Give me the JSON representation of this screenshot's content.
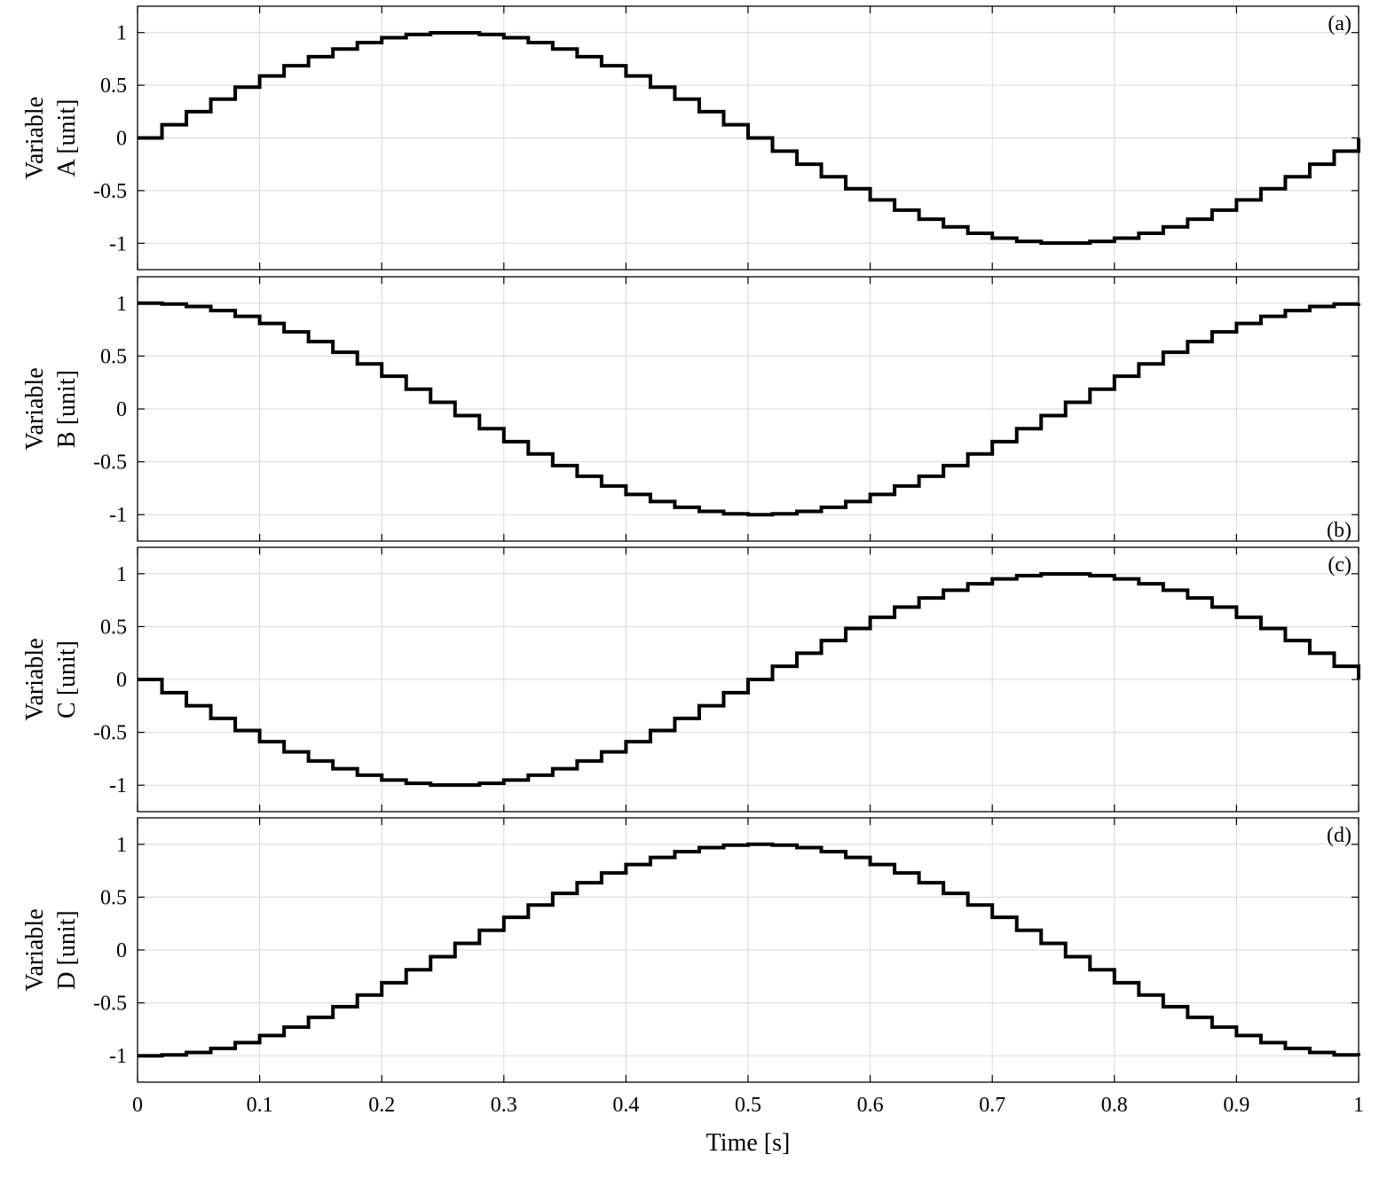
{
  "chart_data": [
    {
      "type": "line",
      "panel_label": "(a)",
      "label_position": "top-right",
      "ylabel": [
        "Variable",
        "A [unit]"
      ],
      "xlim": [
        0,
        1
      ],
      "ylim": [
        -1.25,
        1.25
      ],
      "yticks": [
        -1,
        -0.5,
        0,
        0.5,
        1
      ],
      "ytick_labels": [
        "-1",
        "-0.5",
        "0",
        "0.5",
        "1"
      ],
      "grid": true,
      "step": 0.02,
      "x": [
        0,
        0.02,
        0.04,
        0.06,
        0.08,
        0.1,
        0.12,
        0.14,
        0.16,
        0.18,
        0.2,
        0.22,
        0.24,
        0.26,
        0.28,
        0.3,
        0.32,
        0.34,
        0.36,
        0.38,
        0.4,
        0.42,
        0.44,
        0.46,
        0.48,
        0.5,
        0.52,
        0.54,
        0.56,
        0.58,
        0.6,
        0.62,
        0.64,
        0.66,
        0.68,
        0.7,
        0.72,
        0.74,
        0.76,
        0.78,
        0.8,
        0.82,
        0.84,
        0.86,
        0.88,
        0.9,
        0.92,
        0.94,
        0.96,
        0.98,
        1
      ],
      "values": [
        0,
        0.125,
        0.249,
        0.368,
        0.482,
        0.588,
        0.685,
        0.771,
        0.844,
        0.905,
        0.951,
        0.982,
        0.998,
        0.998,
        0.982,
        0.951,
        0.905,
        0.844,
        0.771,
        0.685,
        0.588,
        0.482,
        0.368,
        0.249,
        0.125,
        0,
        -0.125,
        -0.249,
        -0.368,
        -0.482,
        -0.588,
        -0.685,
        -0.771,
        -0.844,
        -0.905,
        -0.951,
        -0.982,
        -0.998,
        -0.998,
        -0.982,
        -0.951,
        -0.905,
        -0.844,
        -0.771,
        -0.685,
        -0.588,
        -0.482,
        -0.368,
        -0.249,
        -0.125,
        0
      ]
    },
    {
      "type": "line",
      "panel_label": "(b)",
      "label_position": "bottom-right",
      "ylabel": [
        "Variable",
        "B [unit]"
      ],
      "xlim": [
        0,
        1
      ],
      "ylim": [
        -1.25,
        1.25
      ],
      "yticks": [
        -1,
        -0.5,
        0,
        0.5,
        1
      ],
      "ytick_labels": [
        "-1",
        "-0.5",
        "0",
        "0.5",
        "1"
      ],
      "grid": true,
      "step": 0.02,
      "x": [
        0,
        0.02,
        0.04,
        0.06,
        0.08,
        0.1,
        0.12,
        0.14,
        0.16,
        0.18,
        0.2,
        0.22,
        0.24,
        0.26,
        0.28,
        0.3,
        0.32,
        0.34,
        0.36,
        0.38,
        0.4,
        0.42,
        0.44,
        0.46,
        0.48,
        0.5,
        0.52,
        0.54,
        0.56,
        0.58,
        0.6,
        0.62,
        0.64,
        0.66,
        0.68,
        0.7,
        0.72,
        0.74,
        0.76,
        0.78,
        0.8,
        0.82,
        0.84,
        0.86,
        0.88,
        0.9,
        0.92,
        0.94,
        0.96,
        0.98,
        1
      ],
      "values": [
        1,
        0.992,
        0.969,
        0.93,
        0.876,
        0.809,
        0.729,
        0.637,
        0.536,
        0.426,
        0.309,
        0.187,
        0.063,
        -0.063,
        -0.187,
        -0.309,
        -0.426,
        -0.536,
        -0.637,
        -0.729,
        -0.809,
        -0.876,
        -0.93,
        -0.969,
        -0.992,
        -1,
        -0.992,
        -0.969,
        -0.93,
        -0.876,
        -0.809,
        -0.729,
        -0.637,
        -0.536,
        -0.426,
        -0.309,
        -0.187,
        -0.063,
        0.063,
        0.187,
        0.309,
        0.426,
        0.536,
        0.637,
        0.729,
        0.809,
        0.876,
        0.93,
        0.969,
        0.992,
        1
      ]
    },
    {
      "type": "line",
      "panel_label": "(c)",
      "label_position": "top-right",
      "ylabel": [
        "Variable",
        "C [unit]"
      ],
      "xlim": [
        0,
        1
      ],
      "ylim": [
        -1.25,
        1.25
      ],
      "yticks": [
        -1,
        -0.5,
        0,
        0.5,
        1
      ],
      "ytick_labels": [
        "-1",
        "-0.5",
        "0",
        "0.5",
        "1"
      ],
      "grid": true,
      "step": 0.02,
      "x": [
        0,
        0.02,
        0.04,
        0.06,
        0.08,
        0.1,
        0.12,
        0.14,
        0.16,
        0.18,
        0.2,
        0.22,
        0.24,
        0.26,
        0.28,
        0.3,
        0.32,
        0.34,
        0.36,
        0.38,
        0.4,
        0.42,
        0.44,
        0.46,
        0.48,
        0.5,
        0.52,
        0.54,
        0.56,
        0.58,
        0.6,
        0.62,
        0.64,
        0.66,
        0.68,
        0.7,
        0.72,
        0.74,
        0.76,
        0.78,
        0.8,
        0.82,
        0.84,
        0.86,
        0.88,
        0.9,
        0.92,
        0.94,
        0.96,
        0.98,
        1
      ],
      "values": [
        0,
        -0.125,
        -0.249,
        -0.368,
        -0.482,
        -0.588,
        -0.685,
        -0.771,
        -0.844,
        -0.905,
        -0.951,
        -0.982,
        -0.998,
        -0.998,
        -0.982,
        -0.951,
        -0.905,
        -0.844,
        -0.771,
        -0.685,
        -0.588,
        -0.482,
        -0.368,
        -0.249,
        -0.125,
        0,
        0.125,
        0.249,
        0.368,
        0.482,
        0.588,
        0.685,
        0.771,
        0.844,
        0.905,
        0.951,
        0.982,
        0.998,
        0.998,
        0.982,
        0.951,
        0.905,
        0.844,
        0.771,
        0.685,
        0.588,
        0.482,
        0.368,
        0.249,
        0.125,
        0
      ]
    },
    {
      "type": "line",
      "panel_label": "(d)",
      "label_position": "top-right",
      "ylabel": [
        "Variable",
        "D [unit]"
      ],
      "xlabel": "Time [s]",
      "xlim": [
        0,
        1
      ],
      "ylim": [
        -1.25,
        1.25
      ],
      "xticks": [
        0,
        0.1,
        0.2,
        0.3,
        0.4,
        0.5,
        0.6,
        0.7,
        0.8,
        0.9,
        1
      ],
      "xtick_labels": [
        "0",
        "0.1",
        "0.2",
        "0.3",
        "0.4",
        "0.5",
        "0.6",
        "0.7",
        "0.8",
        "0.9",
        "1"
      ],
      "yticks": [
        -1,
        -0.5,
        0,
        0.5,
        1
      ],
      "ytick_labels": [
        "-1",
        "-0.5",
        "0",
        "0.5",
        "1"
      ],
      "grid": true,
      "step": 0.02,
      "x": [
        0,
        0.02,
        0.04,
        0.06,
        0.08,
        0.1,
        0.12,
        0.14,
        0.16,
        0.18,
        0.2,
        0.22,
        0.24,
        0.26,
        0.28,
        0.3,
        0.32,
        0.34,
        0.36,
        0.38,
        0.4,
        0.42,
        0.44,
        0.46,
        0.48,
        0.5,
        0.52,
        0.54,
        0.56,
        0.58,
        0.6,
        0.62,
        0.64,
        0.66,
        0.68,
        0.7,
        0.72,
        0.74,
        0.76,
        0.78,
        0.8,
        0.82,
        0.84,
        0.86,
        0.88,
        0.9,
        0.92,
        0.94,
        0.96,
        0.98,
        1
      ],
      "values": [
        -1,
        -0.992,
        -0.969,
        -0.93,
        -0.876,
        -0.809,
        -0.729,
        -0.637,
        -0.536,
        -0.426,
        -0.309,
        -0.187,
        -0.063,
        0.063,
        0.187,
        0.309,
        0.426,
        0.536,
        0.637,
        0.729,
        0.809,
        0.876,
        0.93,
        0.969,
        0.992,
        1,
        0.992,
        0.969,
        0.93,
        0.876,
        0.809,
        0.729,
        0.637,
        0.536,
        0.426,
        0.309,
        0.187,
        0.063,
        -0.063,
        -0.187,
        -0.309,
        -0.426,
        -0.536,
        -0.637,
        -0.729,
        -0.809,
        -0.876,
        -0.93,
        -0.969,
        -0.992,
        -1
      ]
    }
  ]
}
